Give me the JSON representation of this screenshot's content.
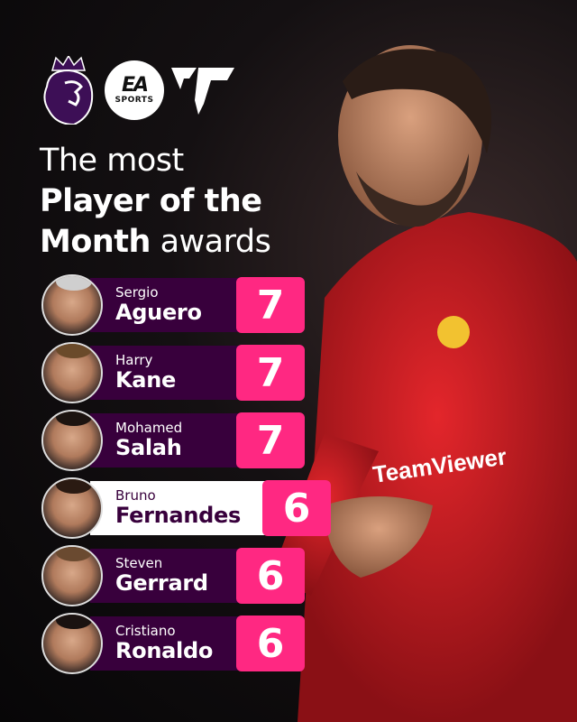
{
  "logos": {
    "league": "premier-league-lion-logo",
    "sponsor_top": "EA",
    "sponsor_bottom": "SPORTS",
    "game": "FC"
  },
  "title": {
    "line1": "The most",
    "line2": "Player of the",
    "line3_bold": "Month",
    "line3_rest": " awards"
  },
  "colors": {
    "purple": "#38003c",
    "pink": "#ff2882",
    "highlight": "#ffffff"
  },
  "players": [
    {
      "first": "Sergio",
      "last": "Aguero",
      "awards": "7"
    },
    {
      "first": "Harry",
      "last": "Kane",
      "awards": "7"
    },
    {
      "first": "Mohamed",
      "last": "Salah",
      "awards": "7"
    },
    {
      "first": "Bruno",
      "last": "Fernandes",
      "awards": "6",
      "highlighted": true
    },
    {
      "first": "Steven",
      "last": "Gerrard",
      "awards": "6"
    },
    {
      "first": "Cristiano",
      "last": "Ronaldo",
      "awards": "6"
    }
  ]
}
